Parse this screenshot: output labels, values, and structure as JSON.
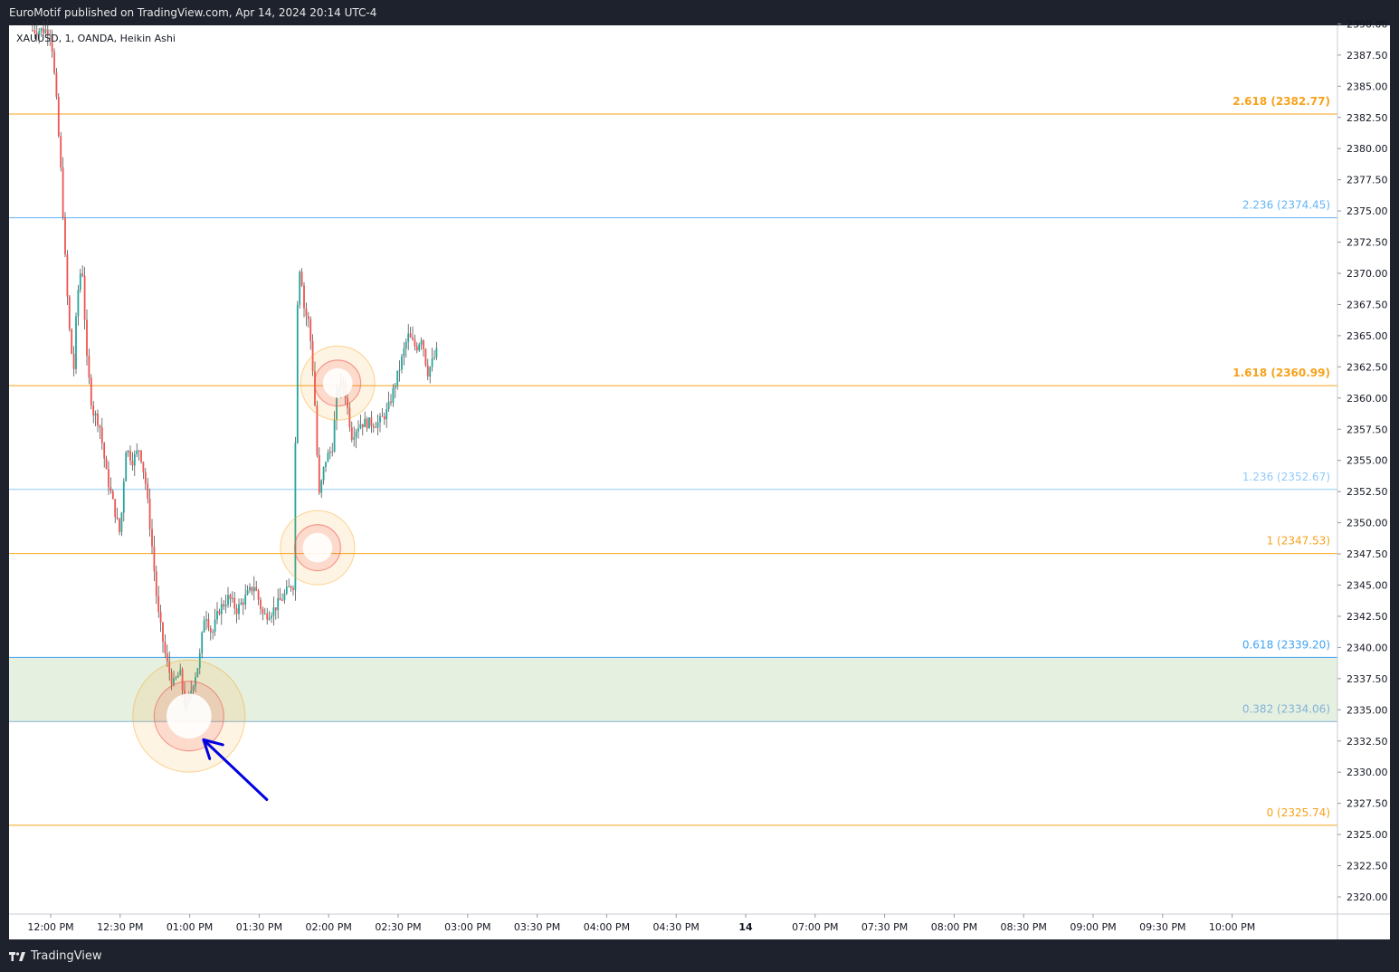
{
  "header": {
    "published": "EuroMotif published on TradingView.com, Apr 14, 2024 20:14 UTC-4",
    "symbol": "XAUUSD, 1, OANDA, Heikin Ashi"
  },
  "footer": {
    "brand": "TradingView"
  },
  "colors": {
    "up": "#26a69a",
    "down": "#ef5350",
    "fib_orange": "#f7a21b",
    "fib_blue": "#64b5f6",
    "fib_zone": "#e6f0e0",
    "arrow": "#0000e0"
  },
  "chart_data": {
    "type": "candlestick",
    "ylim": [
      2318.5,
      2390.5
    ],
    "y_ticks": [
      2320,
      2322.5,
      2325,
      2327.5,
      2330,
      2332.5,
      2335,
      2337.5,
      2340,
      2342.5,
      2345,
      2347.5,
      2350,
      2352.5,
      2355,
      2357.5,
      2360,
      2362.5,
      2365,
      2367.5,
      2370,
      2372.5,
      2375,
      2377.5,
      2380,
      2382.5,
      2385,
      2387.5,
      2390
    ],
    "y_tick_labels": [
      "2320.00",
      "2322.50",
      "2325.00",
      "2327.50",
      "2330.00",
      "2332.50",
      "2335.00",
      "2337.50",
      "2340.00",
      "2342.50",
      "2345.00",
      "2347.50",
      "2350.00",
      "2352.50",
      "2355.00",
      "2357.50",
      "2360.00",
      "2362.50",
      "2365.00",
      "2367.50",
      "2370.00",
      "2372.50",
      "2375.00",
      "2377.50",
      "2380.00",
      "2382.50",
      "2385.00",
      "2387.50",
      "2390.00"
    ],
    "x_ticks": [
      {
        "label": "12:00 PM",
        "bold": false
      },
      {
        "label": "12:30 PM",
        "bold": false
      },
      {
        "label": "01:00 PM",
        "bold": false
      },
      {
        "label": "01:30 PM",
        "bold": false
      },
      {
        "label": "02:00 PM",
        "bold": false
      },
      {
        "label": "02:30 PM",
        "bold": false
      },
      {
        "label": "03:00 PM",
        "bold": false
      },
      {
        "label": "03:30 PM",
        "bold": false
      },
      {
        "label": "04:00 PM",
        "bold": false
      },
      {
        "label": "04:30 PM",
        "bold": false
      },
      {
        "label": "14",
        "bold": true
      },
      {
        "label": "07:00 PM",
        "bold": false
      },
      {
        "label": "07:30 PM",
        "bold": false
      },
      {
        "label": "08:00 PM",
        "bold": false
      },
      {
        "label": "08:30 PM",
        "bold": false
      },
      {
        "label": "09:00 PM",
        "bold": false
      },
      {
        "label": "09:30 PM",
        "bold": false
      },
      {
        "label": "10:00 PM",
        "bold": false
      }
    ],
    "fib_levels": [
      {
        "level": "2.618",
        "price": 2382.77,
        "label": "2.618 (2382.77)",
        "color": "#f7a21b",
        "bold": true
      },
      {
        "level": "2.236",
        "price": 2374.45,
        "label": "2.236 (2374.45)",
        "color": "#64b5f6",
        "bold": false
      },
      {
        "level": "1.618",
        "price": 2360.99,
        "label": "1.618 (2360.99)",
        "color": "#f7a21b",
        "bold": true
      },
      {
        "level": "1.236",
        "price": 2352.67,
        "label": "1.236 (2352.67)",
        "color": "#90caf9",
        "bold": false
      },
      {
        "level": "1",
        "price": 2347.53,
        "label": "1 (2347.53)",
        "color": "#f7a21b",
        "bold": false
      },
      {
        "level": "0.618",
        "price": 2339.2,
        "label": "0.618 (2339.20)",
        "color": "#42a5f5",
        "bold": false
      },
      {
        "level": "0.382",
        "price": 2334.06,
        "label": "0.382 (2334.06)",
        "color": "#81b4d8",
        "bold": false
      },
      {
        "level": "0",
        "price": 2325.74,
        "label": "0 (2325.74)",
        "color": "#f7a21b",
        "bold": false
      }
    ],
    "price_path": [
      [
        0,
        2389.5
      ],
      [
        0.08,
        2384
      ],
      [
        0.16,
        2377
      ],
      [
        0.2,
        2372
      ],
      [
        0.26,
        2366
      ],
      [
        0.33,
        2362
      ],
      [
        0.38,
        2368
      ],
      [
        0.45,
        2371
      ],
      [
        0.52,
        2363
      ],
      [
        0.6,
        2359
      ],
      [
        0.7,
        2358
      ],
      [
        0.8,
        2354
      ],
      [
        0.92,
        2351
      ],
      [
        1.0,
        2349
      ],
      [
        1.08,
        2356
      ],
      [
        1.18,
        2355
      ],
      [
        1.28,
        2356
      ],
      [
        1.37,
        2353
      ],
      [
        1.46,
        2348
      ],
      [
        1.54,
        2343
      ],
      [
        1.66,
        2339
      ],
      [
        1.76,
        2337
      ],
      [
        1.86,
        2338
      ],
      [
        1.94,
        2335
      ],
      [
        2.04,
        2337
      ],
      [
        2.14,
        2339
      ],
      [
        2.22,
        2343
      ],
      [
        2.32,
        2341
      ],
      [
        2.42,
        2343
      ],
      [
        2.56,
        2344
      ],
      [
        2.68,
        2343
      ],
      [
        2.8,
        2344
      ],
      [
        2.93,
        2345
      ],
      [
        3.06,
        2342.5
      ],
      [
        3.2,
        2343
      ],
      [
        3.34,
        2344
      ],
      [
        3.46,
        2345
      ],
      [
        3.51,
        2345
      ],
      [
        3.53,
        2366
      ],
      [
        3.59,
        2371
      ],
      [
        3.65,
        2367
      ],
      [
        3.72,
        2366
      ],
      [
        3.79,
        2361
      ],
      [
        3.86,
        2352
      ],
      [
        3.95,
        2355
      ],
      [
        4.05,
        2356
      ],
      [
        4.13,
        2361
      ],
      [
        4.22,
        2361
      ],
      [
        4.33,
        2357
      ],
      [
        4.45,
        2358
      ],
      [
        4.6,
        2358
      ],
      [
        4.72,
        2358
      ],
      [
        4.85,
        2359
      ],
      [
        5.0,
        2362
      ],
      [
        5.14,
        2365
      ],
      [
        5.26,
        2364
      ],
      [
        5.34,
        2365
      ],
      [
        5.42,
        2362
      ],
      [
        5.5,
        2363
      ],
      [
        5.58,
        2364
      ]
    ],
    "highlight_prices": [
      2334.5,
      2348.0,
      2361.2
    ],
    "arrow": {
      "from": [
        3.11,
        2327.8
      ],
      "to": [
        2.2,
        2332.6
      ]
    }
  }
}
